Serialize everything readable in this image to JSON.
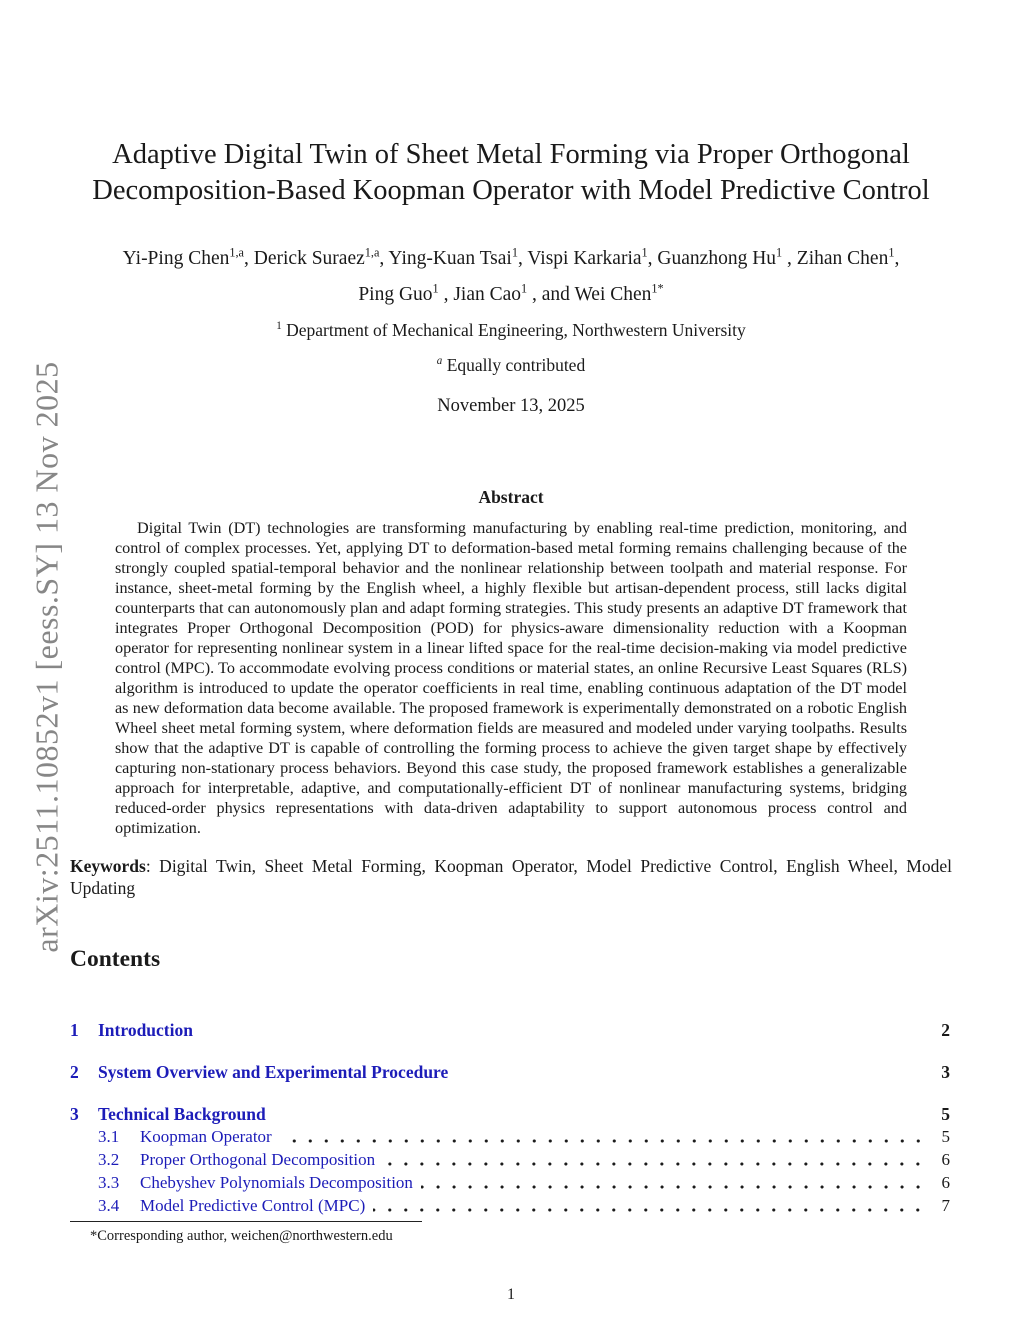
{
  "watermark": {
    "text": "arXiv:2511.10852v1  [eess.SY]  13 Nov 2025"
  },
  "colors": {
    "link_blue": "#1c1cb8",
    "watermark_gray": "#878787",
    "text": "#1a1a1a"
  },
  "title": {
    "line1": "Adaptive Digital Twin of Sheet Metal Forming via Proper Orthogonal",
    "line2": "Decomposition-Based Koopman Operator with Model Predictive Control"
  },
  "authors": {
    "line1": [
      {
        "t": "Yi-Ping Chen",
        "s": "1,a"
      },
      {
        "t": ", Derick Suraez",
        "s": "1,a"
      },
      {
        "t": ", Ying-Kuan Tsai",
        "s": "1"
      },
      {
        "t": ", Vispi Karkaria",
        "s": "1"
      },
      {
        "t": ", Guanzhong Hu",
        "s": "1"
      },
      {
        "t": " , Zihan Chen",
        "s": "1"
      },
      {
        "t": ","
      }
    ],
    "line2": [
      {
        "t": "Ping Guo",
        "s": "1"
      },
      {
        "t": " , Jian Cao",
        "s": "1"
      },
      {
        "t": " , and Wei Chen",
        "s": "1*"
      }
    ]
  },
  "affiliation": {
    "sup": "1",
    "text": " Department of Mechanical Engineering, Northwestern University"
  },
  "contributed": {
    "sup": "a",
    "text": " Equally contributed"
  },
  "date": "November 13, 2025",
  "abstract": {
    "heading": "Abstract",
    "text": "Digital Twin (DT) technologies are transforming manufacturing by enabling real-time prediction, monitoring, and control of complex processes.  Yet, applying DT to deformation-based metal forming remains challenging because of the strongly coupled spatial-temporal behavior and the nonlinear relationship between toolpath and material response. For instance, sheet-metal forming by the English wheel, a highly flexible but artisan-dependent process, still lacks digital counterparts that can autonomously plan and adapt forming strategies.  This study presents an adaptive DT framework that integrates Proper Orthogonal Decomposition (POD) for physics-aware dimensionality reduction with a Koopman operator for representing nonlinear system in a linear lifted space for the real-time decision-making via model predictive control (MPC). To accommodate evolving process conditions or material states, an online Recursive Least Squares (RLS) algorithm is introduced to update the operator coefficients in real time, enabling continuous adaptation of the DT model as new deformation data become available.  The proposed framework is experimentally demonstrated on a robotic English Wheel sheet metal forming system, where deformation fields are measured and modeled under varying toolpaths.  Results show that the adaptive DT is capable of controlling the forming process to achieve the given target shape by effectively capturing non-stationary process behaviors.  Beyond this case study, the proposed framework establishes a generalizable approach for interpretable, adaptive, and computationally-efficient DT of nonlinear manufacturing systems, bridging reduced-order physics representations with data-driven adaptability to support autonomous process control and optimization."
  },
  "keywords": {
    "label": "Keywords",
    "text": ":  Digital Twin, Sheet Metal Forming, Koopman Operator, Model Predictive Control, English Wheel, Model Updating"
  },
  "contents_heading": "Contents",
  "toc": {
    "sections": [
      {
        "num": "1",
        "title": "Introduction",
        "page": "2"
      },
      {
        "num": "2",
        "title": "System Overview and Experimental Procedure",
        "page": "3"
      },
      {
        "num": "3",
        "title": "Technical Background",
        "page": "5"
      }
    ],
    "subsections": [
      {
        "num": "3.1",
        "title": "Koopman Operator",
        "page": "5"
      },
      {
        "num": "3.2",
        "title": "Proper Orthogonal Decomposition",
        "page": "6"
      },
      {
        "num": "3.3",
        "title": "Chebyshev Polynomials Decomposition",
        "page": "6"
      },
      {
        "num": "3.4",
        "title": "Model Predictive Control (MPC)",
        "page": "7"
      }
    ]
  },
  "footnote": "*Corresponding author, weichen@northwestern.edu",
  "page_number": "1"
}
